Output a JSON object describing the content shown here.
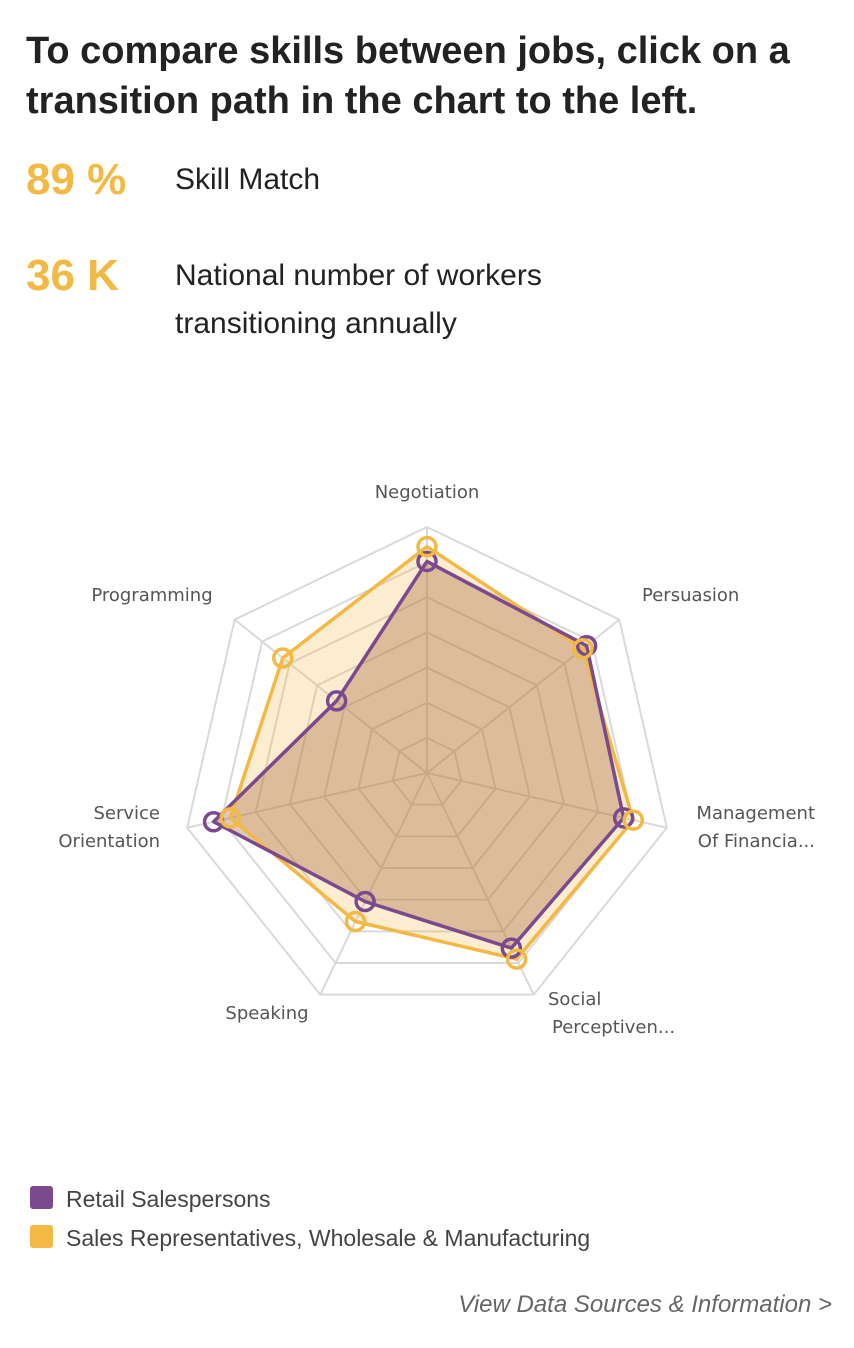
{
  "header": {
    "title": "To compare skills between jobs, click on a transition path in the chart to the left."
  },
  "stats": [
    {
      "value": "89 %",
      "label": "Skill Match"
    },
    {
      "value": "36 K",
      "label": "National number of workers transitioning annually"
    }
  ],
  "footer": {
    "link_label": "View Data Sources & Information >"
  },
  "colors": {
    "accent": "#F2B945",
    "series_retail": "#7B4A8E",
    "series_sales": "#F2B945",
    "overlap_fill": "#D8BFB6",
    "grid": "#D9D9D9"
  },
  "chart_data": {
    "type": "radar",
    "categories": [
      "Negotiation",
      "Persuasion",
      "Management Of Financia...",
      "Social Perceptiven...",
      "Speaking",
      "Service Orientation",
      "Programming"
    ],
    "scale": {
      "min": 0,
      "max": 1,
      "rings": 7
    },
    "series": [
      {
        "name": "Retail Salespersons",
        "color": "#7B4A8E",
        "values": [
          0.86,
          0.83,
          0.82,
          0.79,
          0.58,
          0.89,
          0.47
        ]
      },
      {
        "name": "Sales Representatives, Wholesale & Manufacturing",
        "color": "#F2B945",
        "values": [
          0.92,
          0.81,
          0.86,
          0.84,
          0.67,
          0.82,
          0.75
        ]
      }
    ],
    "legend_position": "bottom-left"
  }
}
